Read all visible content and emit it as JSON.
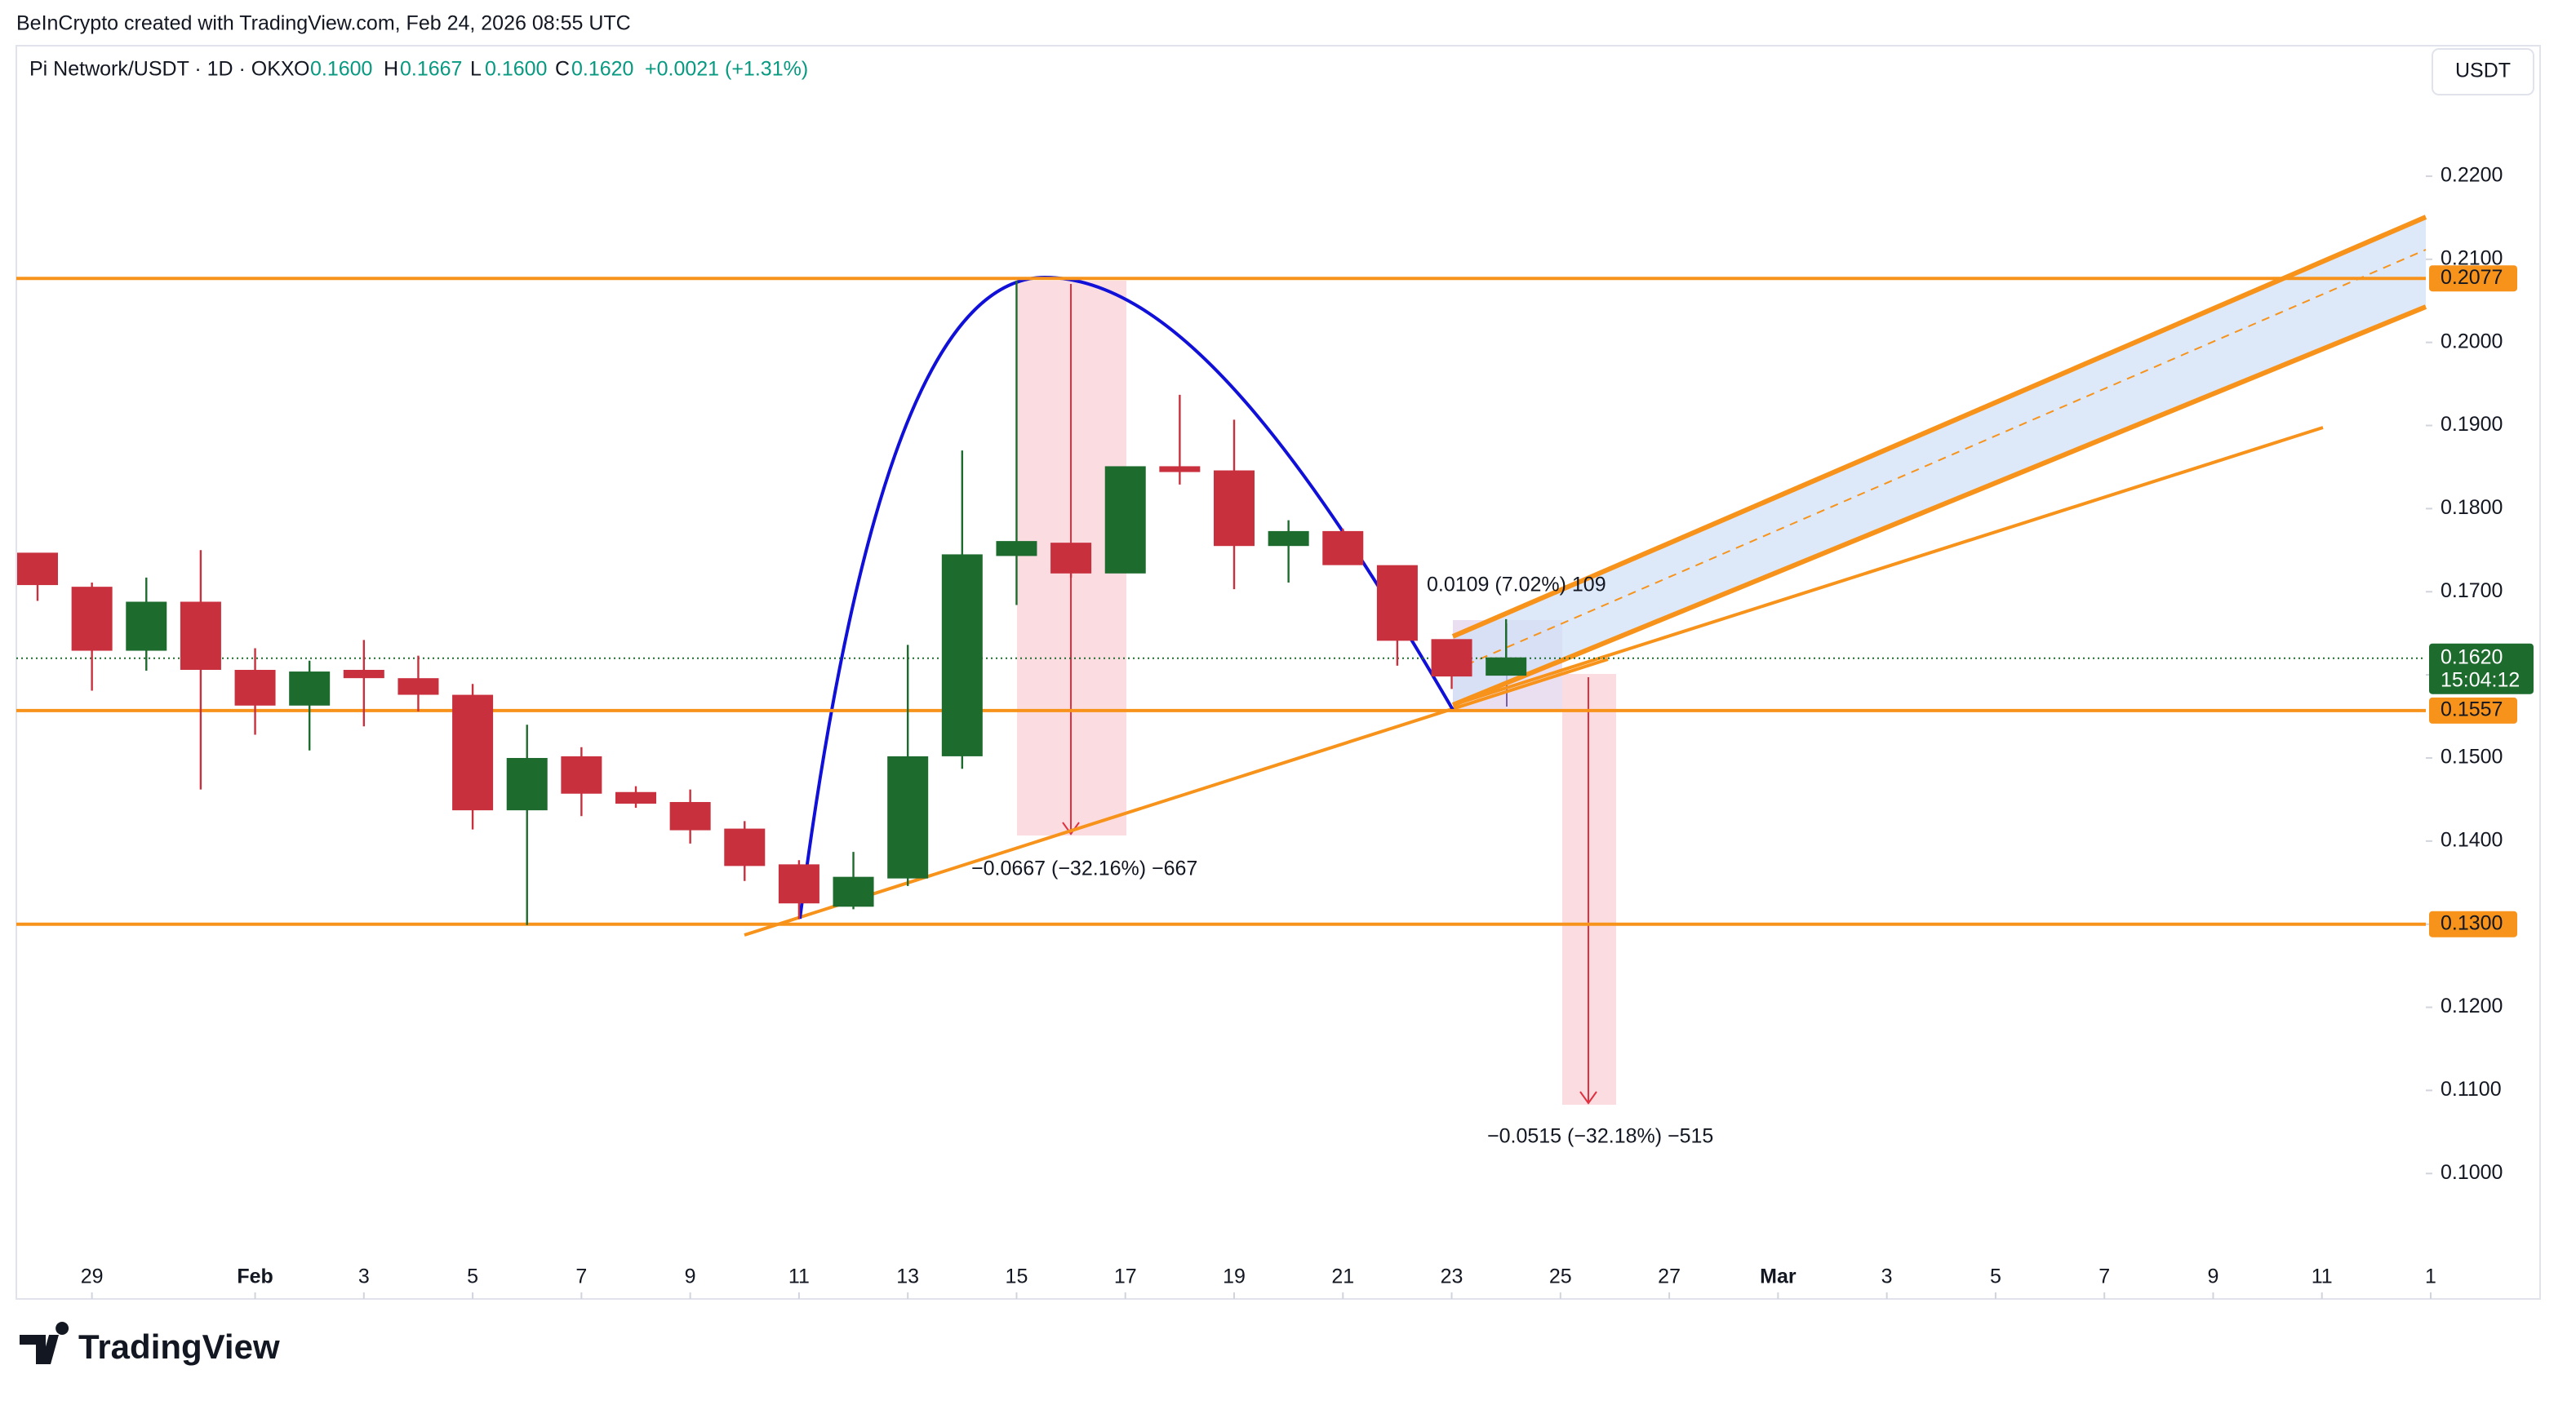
{
  "credit": "BeInCrypto created with TradingView.com, Feb 24, 2026 08:55 UTC",
  "header": {
    "symbol": "Pi Network/USDT · 1D · OKX",
    "o_key": "O",
    "o": "0.1600",
    "h_key": "H",
    "h": "0.1667",
    "l_key": "L",
    "l": "0.1600",
    "c_key": "C",
    "c": "0.1620",
    "change": "+0.0021 (+1.31%)"
  },
  "currency_button": "USDT",
  "logo": "TradingView",
  "chart_data": {
    "type": "candlestick",
    "x": [
      "2026-01-28",
      "2026-01-29",
      "2026-01-30",
      "2026-01-31",
      "2026-02-01",
      "2026-02-02",
      "2026-02-03",
      "2026-02-04",
      "2026-02-05",
      "2026-02-06",
      "2026-02-07",
      "2026-02-08",
      "2026-02-09",
      "2026-02-10",
      "2026-02-11",
      "2026-02-12",
      "2026-02-13",
      "2026-02-14",
      "2026-02-15",
      "2026-02-16",
      "2026-02-17",
      "2026-02-18",
      "2026-02-19",
      "2026-02-20",
      "2026-02-21",
      "2026-02-22",
      "2026-02-23",
      "2026-02-24"
    ],
    "open": [
      0.1746,
      0.1705,
      0.163,
      0.1687,
      0.1605,
      0.1564,
      0.1605,
      0.1595,
      0.1575,
      0.1438,
      0.1501,
      0.1458,
      0.1446,
      0.1414,
      0.1371,
      0.1322,
      0.1356,
      0.1503,
      0.1744,
      0.1758,
      0.1723,
      0.185,
      0.1845,
      0.1756,
      0.1772,
      0.1731,
      0.1642,
      0.16
    ],
    "high": [
      0.1746,
      0.1711,
      0.1717,
      0.175,
      0.1632,
      0.1617,
      0.1642,
      0.1623,
      0.1589,
      0.154,
      0.1513,
      0.1466,
      0.1462,
      0.1424,
      0.1377,
      0.1387,
      0.1636,
      0.187,
      0.2074,
      0.1758,
      0.185,
      0.1937,
      0.1907,
      0.1786,
      0.1776,
      0.1731,
      0.1642,
      0.1667
    ],
    "low": [
      0.1689,
      0.1581,
      0.1605,
      0.1462,
      0.1528,
      0.1509,
      0.1538,
      0.1556,
      0.1414,
      0.1299,
      0.143,
      0.144,
      0.1397,
      0.1352,
      0.1306,
      0.1318,
      0.1346,
      0.1487,
      0.1684,
      0.1717,
      0.1723,
      0.1829,
      0.1703,
      0.1711,
      0.1733,
      0.1611,
      0.1583,
      0.16
    ],
    "close": [
      0.1709,
      0.163,
      0.1687,
      0.1607,
      0.1564,
      0.1603,
      0.1597,
      0.1577,
      0.1438,
      0.1499,
      0.1458,
      0.1446,
      0.1414,
      0.1371,
      0.1326,
      0.1356,
      0.1501,
      0.1744,
      0.176,
      0.1723,
      0.185,
      0.1845,
      0.1756,
      0.1772,
      0.1733,
      0.1642,
      0.1599,
      0.162
    ],
    "up_color": "#1e6b2e",
    "down_color": "#c9303e",
    "xlim": [
      "2026-01-28",
      "2026-03-13"
    ],
    "xticks": [
      {
        "value": "2026-01-29",
        "label": "29"
      },
      {
        "value": "2026-02-01",
        "label": "Feb"
      },
      {
        "value": "2026-02-03",
        "label": "3"
      },
      {
        "value": "2026-02-05",
        "label": "5"
      },
      {
        "value": "2026-02-07",
        "label": "7"
      },
      {
        "value": "2026-02-09",
        "label": "9"
      },
      {
        "value": "2026-02-11",
        "label": "11"
      },
      {
        "value": "2026-02-13",
        "label": "13"
      },
      {
        "value": "2026-02-15",
        "label": "15"
      },
      {
        "value": "2026-02-17",
        "label": "17"
      },
      {
        "value": "2026-02-19",
        "label": "19"
      },
      {
        "value": "2026-02-21",
        "label": "21"
      },
      {
        "value": "2026-02-23",
        "label": "23"
      },
      {
        "value": "2026-02-25",
        "label": "25"
      },
      {
        "value": "2026-02-27",
        "label": "27"
      },
      {
        "value": "2026-03-01",
        "label": "Mar"
      },
      {
        "value": "2026-03-03",
        "label": "3"
      },
      {
        "value": "2026-03-05",
        "label": "5"
      },
      {
        "value": "2026-03-07",
        "label": "7"
      },
      {
        "value": "2026-03-09",
        "label": "9"
      },
      {
        "value": "2026-03-11",
        "label": "11"
      },
      {
        "value": "2026-03-13",
        "label": "1"
      }
    ],
    "ylim": [
      0.0908,
      0.2357
    ],
    "yticks": [
      {
        "value": 0.1,
        "label": "0.1000"
      },
      {
        "value": 0.11,
        "label": "0.1100"
      },
      {
        "value": 0.12,
        "label": "0.1200"
      },
      {
        "value": 0.13,
        "label": "0.1300"
      },
      {
        "value": 0.14,
        "label": "0.1400"
      },
      {
        "value": 0.15,
        "label": "0.1500"
      },
      {
        "value": 0.16,
        "label": "0.1600"
      },
      {
        "value": 0.17,
        "label": "0.1700"
      },
      {
        "value": 0.18,
        "label": "0.1800"
      },
      {
        "value": 0.19,
        "label": "0.1900"
      },
      {
        "value": 0.2,
        "label": "0.2000"
      },
      {
        "value": 0.21,
        "label": "0.2100"
      },
      {
        "value": 0.22,
        "label": "0.2200"
      }
    ],
    "levels": [
      {
        "value": 0.2077,
        "label": "0.2077"
      },
      {
        "value": 0.1557,
        "label": "0.1557"
      },
      {
        "value": 0.13,
        "label": "0.1300"
      }
    ],
    "level_color": "#f7931a",
    "last_price": {
      "value": 0.162,
      "label": "0.1620",
      "countdown": "15:04:12"
    },
    "annotations": [
      "0.0109 (7.02%) 109",
      "−0.0667 (−32.16%) −667",
      "−0.0515 (−32.18%) −515"
    ]
  }
}
